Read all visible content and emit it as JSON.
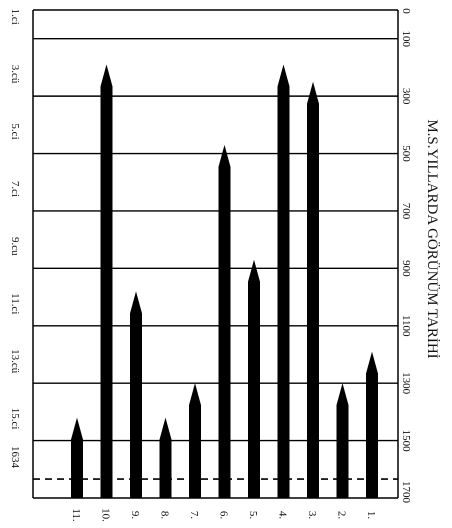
{
  "chart_data": {
    "type": "bar",
    "title": "M.S.YILLARDA GÖRÜNÜM TARİHİ",
    "xlabel": "",
    "ylabel": "",
    "ylim": [
      0,
      1700
    ],
    "y_reversed": true,
    "y_ticks_right": [
      "0",
      "100",
      "300",
      "500",
      "700",
      "900",
      "1100",
      "1300",
      "1500",
      "1700"
    ],
    "y_tick_values": [
      0,
      100,
      300,
      500,
      700,
      900,
      1100,
      1300,
      1500,
      1700
    ],
    "y_ticks_left": [
      {
        "label": "1.ci",
        "value": 100
      },
      {
        "label": "3.cü",
        "value": 300
      },
      {
        "label": "5.ci",
        "value": 500
      },
      {
        "label": "7.ci",
        "value": 700
      },
      {
        "label": "9.cu",
        "value": 900
      },
      {
        "label": "11.ci",
        "value": 1100
      },
      {
        "label": "13.cü",
        "value": 1300
      },
      {
        "label": "15.ci",
        "value": 1500
      },
      {
        "label": "1634",
        "value": 1634
      }
    ],
    "reference_line": {
      "value": 1634,
      "style": "dashed"
    },
    "grid": true,
    "categories": [
      "11.",
      "10.",
      "9.",
      "8.",
      "7.",
      "6.",
      "5.",
      "4.",
      "3.",
      "2.",
      "1."
    ],
    "values": [
      1420,
      190,
      980,
      1420,
      1300,
      470,
      870,
      190,
      250,
      1300,
      1190
    ]
  },
  "colors": {
    "bars": "#000000",
    "grid": "#000000",
    "background": "#ffffff"
  }
}
